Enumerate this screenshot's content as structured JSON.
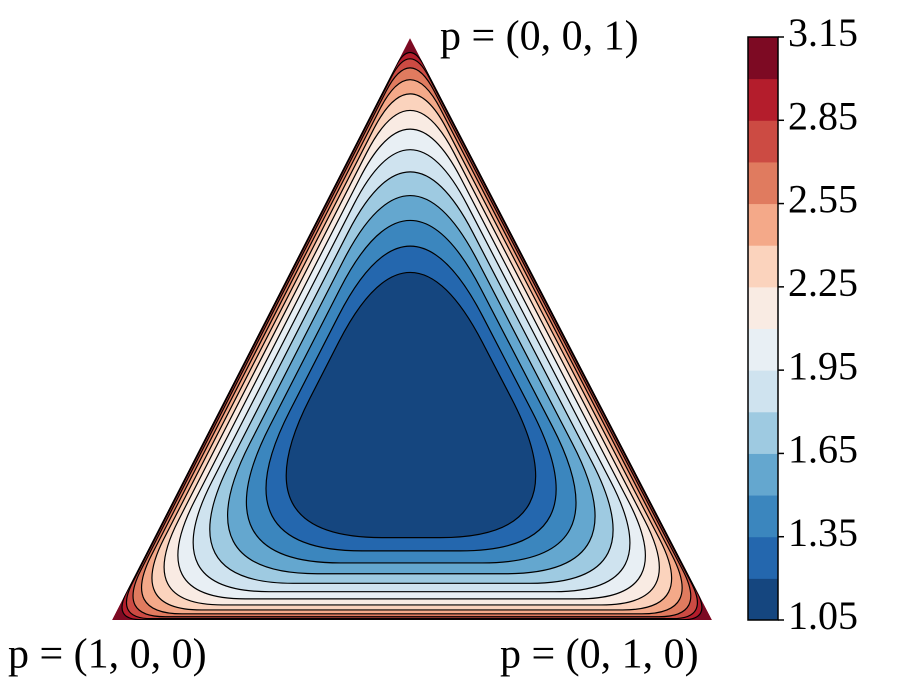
{
  "chart_data": {
    "type": "ternary-contour",
    "corner_labels": [
      "p = (0, 0, 1)",
      "p = (1, 0, 0)",
      "p = (0, 1, 0)"
    ],
    "levels": [
      1.05,
      1.2,
      1.35,
      1.5,
      1.65,
      1.8,
      1.95,
      2.1,
      2.25,
      2.4,
      2.55,
      2.7,
      2.85,
      3.0,
      3.15
    ],
    "colors": [
      "#15467f",
      "#2467ae",
      "#3b86be",
      "#64a7cf",
      "#9ecae1",
      "#cfe3ef",
      "#e8eff4",
      "#f9ebe3",
      "#fbd3bd",
      "#f4a989",
      "#e07b5f",
      "#cc4b43",
      "#b41d2c",
      "#7d0a23"
    ],
    "clim": [
      1.05,
      3.15
    ],
    "cticks": [
      1.05,
      1.35,
      1.65,
      1.95,
      2.25,
      2.55,
      2.85,
      3.15
    ]
  }
}
